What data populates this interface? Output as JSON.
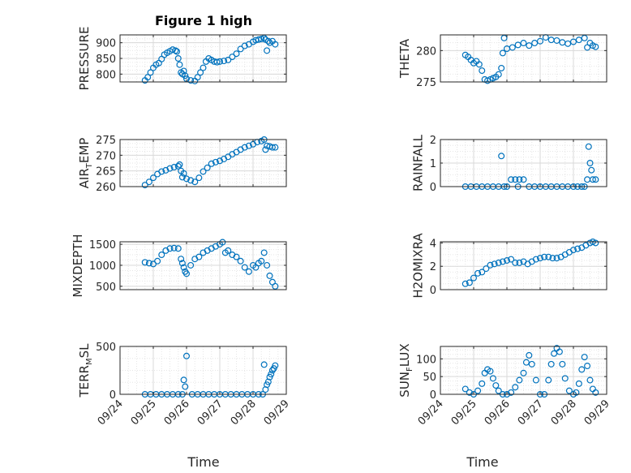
{
  "title": "Figure 1 high",
  "xlabel": "Time",
  "x_ticks": [
    "09/24",
    "09/25",
    "09/26",
    "09/27",
    "09/28",
    "09/29"
  ],
  "x_range": [
    "09/24",
    "09/29"
  ],
  "marker_color": "#0072BD",
  "chart_data": [
    {
      "type": "scatter",
      "ylabel": "PRESSURE",
      "ylim": [
        775,
        925
      ],
      "y_ticks": [
        "800",
        "850",
        "900"
      ],
      "grid": true,
      "x": [
        "09/24 18:00",
        "09/24 20:00",
        "09/24 22:00",
        "09/25 00:00",
        "09/25 02:00",
        "09/25 04:00",
        "09/25 06:00",
        "09/25 08:00",
        "09/25 10:00",
        "09/25 12:00",
        "09/25 14:00",
        "09/25 16:00",
        "09/25 17:00",
        "09/25 18:00",
        "09/25 19:00",
        "09/25 20:00",
        "09/25 21:00",
        "09/25 22:00",
        "09/25 23:00",
        "09/26 00:00",
        "09/26 03:00",
        "09/26 06:00",
        "09/26 08:00",
        "09/26 10:00",
        "09/26 12:00",
        "09/26 14:00",
        "09/26 16:00",
        "09/26 18:00",
        "09/26 20:00",
        "09/26 22:00",
        "09/27 00:00",
        "09/27 03:00",
        "09/27 06:00",
        "09/27 09:00",
        "09/27 12:00",
        "09/27 15:00",
        "09/27 18:00",
        "09/27 21:00",
        "09/28 00:00",
        "09/28 02:00",
        "09/28 04:00",
        "09/28 06:00",
        "09/28 08:00",
        "09/28 09:00",
        "09/28 10:00",
        "09/28 11:00",
        "09/28 12:00",
        "09/28 14:00",
        "09/28 16:00"
      ],
      "y": [
        780,
        790,
        805,
        820,
        830,
        835,
        848,
        862,
        868,
        873,
        878,
        875,
        872,
        850,
        830,
        805,
        800,
        810,
        795,
        785,
        780,
        778,
        790,
        805,
        820,
        840,
        850,
        845,
        840,
        838,
        840,
        842,
        845,
        855,
        865,
        880,
        890,
        895,
        903,
        908,
        910,
        912,
        915,
        910,
        875,
        905,
        900,
        905,
        895
      ]
    },
    {
      "type": "scatter",
      "ylabel": "THETA",
      "ylim": [
        275,
        282.5
      ],
      "y_ticks": [
        "275",
        "280"
      ],
      "grid": true,
      "x": [
        "09/24 18:00",
        "09/24 20:00",
        "09/24 22:00",
        "09/25 00:00",
        "09/25 02:00",
        "09/25 04:00",
        "09/25 06:00",
        "09/25 08:00",
        "09/25 10:00",
        "09/25 12:00",
        "09/25 14:00",
        "09/25 16:00",
        "09/25 18:00",
        "09/25 20:00",
        "09/25 21:00",
        "09/25 22:00",
        "09/26 00:00",
        "09/26 04:00",
        "09/26 08:00",
        "09/26 12:00",
        "09/26 16:00",
        "09/26 20:00",
        "09/27 00:00",
        "09/27 04:00",
        "09/27 08:00",
        "09/27 12:00",
        "09/27 16:00",
        "09/27 20:00",
        "09/28 00:00",
        "09/28 04:00",
        "09/28 08:00",
        "09/28 10:00",
        "09/28 12:00",
        "09/28 14:00",
        "09/28 16:00"
      ],
      "y": [
        279.3,
        279.0,
        278.5,
        278.0,
        278.3,
        277.8,
        276.8,
        275.4,
        275.2,
        275.4,
        275.6,
        275.8,
        276.2,
        277.2,
        279.6,
        282.0,
        280.3,
        280.5,
        280.9,
        281.2,
        280.8,
        281.2,
        281.5,
        282.1,
        281.7,
        281.6,
        281.3,
        281.1,
        281.4,
        281.7,
        282.0,
        280.5,
        281.2,
        280.8,
        280.6
      ]
    },
    {
      "type": "scatter",
      "ylabel": "AIR_TEMP",
      "ylabel_parts": [
        "AIR",
        "T",
        "EMP"
      ],
      "ylim": [
        260,
        275
      ],
      "y_ticks": [
        "260",
        "265",
        "270",
        "275"
      ],
      "grid": true,
      "x": [
        "09/24 18:00",
        "09/24 21:00",
        "09/25 00:00",
        "09/25 03:00",
        "09/25 06:00",
        "09/25 09:00",
        "09/25 12:00",
        "09/25 15:00",
        "09/25 18:00",
        "09/25 19:00",
        "09/25 20:00",
        "09/25 21:00",
        "09/25 22:00",
        "09/26 00:00",
        "09/26 03:00",
        "09/26 06:00",
        "09/26 09:00",
        "09/26 12:00",
        "09/26 15:00",
        "09/26 18:00",
        "09/26 21:00",
        "09/27 00:00",
        "09/27 03:00",
        "09/27 06:00",
        "09/27 09:00",
        "09/27 12:00",
        "09/27 15:00",
        "09/27 18:00",
        "09/27 21:00",
        "09/28 00:00",
        "09/28 03:00",
        "09/28 06:00",
        "09/28 08:00",
        "09/28 09:00",
        "09/28 10:00",
        "09/28 12:00",
        "09/28 14:00",
        "09/28 16:00"
      ],
      "y": [
        260.5,
        261.5,
        262.8,
        264.0,
        264.8,
        265.2,
        265.8,
        266.2,
        266.5,
        267.0,
        265.0,
        263.0,
        264.2,
        262.5,
        262.0,
        261.5,
        262.8,
        264.8,
        266.0,
        267.3,
        267.8,
        268.2,
        268.8,
        269.5,
        270.3,
        271.0,
        271.8,
        272.5,
        273.0,
        273.5,
        274.2,
        274.5,
        275.0,
        271.8,
        273.0,
        272.8,
        272.5,
        272.5
      ]
    },
    {
      "type": "scatter",
      "ylabel": "RAINFALL",
      "ylim": [
        0,
        2
      ],
      "y_ticks": [
        "0",
        "1",
        "2"
      ],
      "grid": true,
      "x": [
        "09/24 18:00",
        "09/24 22:00",
        "09/25 02:00",
        "09/25 06:00",
        "09/25 10:00",
        "09/25 14:00",
        "09/25 18:00",
        "09/25 20:00",
        "09/25 22:00",
        "09/26 00:00",
        "09/26 03:00",
        "09/26 06:00",
        "09/26 08:00",
        "09/26 09:00",
        "09/26 12:00",
        "09/26 16:00",
        "09/26 20:00",
        "09/27 00:00",
        "09/27 04:00",
        "09/27 08:00",
        "09/27 12:00",
        "09/27 16:00",
        "09/27 20:00",
        "09/28 00:00",
        "09/28 03:00",
        "09/28 06:00",
        "09/28 08:00",
        "09/28 10:00",
        "09/28 11:00",
        "09/28 12:00",
        "09/28 13:00",
        "09/28 14:00",
        "09/28 16:00"
      ],
      "y": [
        0,
        0,
        0,
        0,
        0,
        0,
        0,
        1.3,
        0,
        0,
        0.3,
        0.3,
        0,
        0.3,
        0.3,
        0,
        0,
        0,
        0,
        0,
        0,
        0,
        0,
        0,
        0,
        0,
        0,
        0.3,
        1.7,
        1.0,
        0.7,
        0.3,
        0.3
      ]
    },
    {
      "type": "scatter",
      "ylabel": "MIXDEPTH",
      "ylim": [
        420,
        1560
      ],
      "y_ticks": [
        "500",
        "1000",
        "1500"
      ],
      "grid": true,
      "x": [
        "09/24 18:00",
        "09/24 21:00",
        "09/25 00:00",
        "09/25 03:00",
        "09/25 06:00",
        "09/25 09:00",
        "09/25 12:00",
        "09/25 15:00",
        "09/25 18:00",
        "09/25 20:00",
        "09/25 21:00",
        "09/25 22:00",
        "09/25 23:00",
        "09/26 00:00",
        "09/26 03:00",
        "09/26 06:00",
        "09/26 09:00",
        "09/26 12:00",
        "09/26 15:00",
        "09/26 18:00",
        "09/26 21:00",
        "09/27 00:00",
        "09/27 02:00",
        "09/27 04:00",
        "09/27 06:00",
        "09/27 09:00",
        "09/27 12:00",
        "09/27 15:00",
        "09/27 18:00",
        "09/27 21:00",
        "09/28 00:00",
        "09/28 02:00",
        "09/28 04:00",
        "09/28 06:00",
        "09/28 08:00",
        "09/28 10:00",
        "09/28 12:00",
        "09/28 14:00",
        "09/28 16:00"
      ],
      "y": [
        1070,
        1050,
        1030,
        1100,
        1250,
        1350,
        1400,
        1410,
        1400,
        1150,
        1050,
        950,
        850,
        800,
        1000,
        1150,
        1200,
        1300,
        1350,
        1400,
        1450,
        1500,
        1550,
        1300,
        1350,
        1250,
        1200,
        1100,
        950,
        850,
        1000,
        950,
        1050,
        1100,
        1300,
        1000,
        750,
        600,
        500
      ]
    },
    {
      "type": "scatter",
      "ylabel": "H2OMIXRA",
      "ylim": [
        0,
        4.1
      ],
      "y_ticks": [
        "0",
        "2",
        "4"
      ],
      "grid": true,
      "x": [
        "09/24 18:00",
        "09/24 21:00",
        "09/25 00:00",
        "09/25 03:00",
        "09/25 06:00",
        "09/25 09:00",
        "09/25 12:00",
        "09/25 15:00",
        "09/25 18:00",
        "09/25 21:00",
        "09/26 00:00",
        "09/26 03:00",
        "09/26 06:00",
        "09/26 09:00",
        "09/26 12:00",
        "09/26 15:00",
        "09/26 18:00",
        "09/26 21:00",
        "09/27 00:00",
        "09/27 03:00",
        "09/27 06:00",
        "09/27 09:00",
        "09/27 12:00",
        "09/27 15:00",
        "09/27 18:00",
        "09/27 21:00",
        "09/28 00:00",
        "09/28 03:00",
        "09/28 06:00",
        "09/28 09:00",
        "09/28 12:00",
        "09/28 14:00",
        "09/28 16:00"
      ],
      "y": [
        0.5,
        0.6,
        1.0,
        1.4,
        1.5,
        1.8,
        2.1,
        2.2,
        2.3,
        2.4,
        2.5,
        2.6,
        2.3,
        2.3,
        2.4,
        2.2,
        2.4,
        2.6,
        2.7,
        2.8,
        2.8,
        2.7,
        2.7,
        2.8,
        3.0,
        3.2,
        3.4,
        3.5,
        3.6,
        3.8,
        4.0,
        4.1,
        4.0
      ]
    },
    {
      "type": "scatter",
      "ylabel": "TERR_MSL",
      "ylabel_parts": [
        "TERR",
        "M",
        "SL"
      ],
      "ylim": [
        0,
        500
      ],
      "y_ticks": [
        "0",
        "500"
      ],
      "grid": true,
      "x": [
        "09/24 18:00",
        "09/24 22:00",
        "09/25 02:00",
        "09/25 06:00",
        "09/25 10:00",
        "09/25 14:00",
        "09/25 18:00",
        "09/25 21:00",
        "09/25 22:00",
        "09/25 23:00",
        "09/26 00:00",
        "09/26 04:00",
        "09/26 08:00",
        "09/26 12:00",
        "09/26 16:00",
        "09/26 20:00",
        "09/27 00:00",
        "09/27 04:00",
        "09/27 08:00",
        "09/27 12:00",
        "09/27 16:00",
        "09/27 20:00",
        "09/28 00:00",
        "09/28 04:00",
        "09/28 07:00",
        "09/28 08:00",
        "09/28 09:00",
        "09/28 10:00",
        "09/28 11:00",
        "09/28 12:00",
        "09/28 13:00",
        "09/28 14:00",
        "09/28 15:00",
        "09/28 16:00"
      ],
      "y": [
        0,
        0,
        0,
        0,
        0,
        0,
        0,
        0,
        150,
        80,
        400,
        0,
        0,
        0,
        0,
        0,
        0,
        0,
        0,
        0,
        0,
        0,
        0,
        0,
        0,
        310,
        50,
        100,
        130,
        180,
        210,
        250,
        270,
        300
      ]
    },
    {
      "type": "scatter",
      "ylabel": "SUN_FLUX",
      "ylabel_parts": [
        "SUN",
        "F",
        "LUX"
      ],
      "ylim": [
        0,
        135
      ],
      "y_ticks": [
        "0",
        "50",
        "100"
      ],
      "grid": true,
      "x": [
        "09/24 18:00",
        "09/24 21:00",
        "09/25 00:00",
        "09/25 03:00",
        "09/25 06:00",
        "09/25 08:00",
        "09/25 10:00",
        "09/25 12:00",
        "09/25 14:00",
        "09/25 16:00",
        "09/25 18:00",
        "09/25 21:00",
        "09/26 00:00",
        "09/26 03:00",
        "09/26 06:00",
        "09/26 09:00",
        "09/26 12:00",
        "09/26 14:00",
        "09/26 16:00",
        "09/26 18:00",
        "09/26 21:00",
        "09/27 00:00",
        "09/27 03:00",
        "09/27 06:00",
        "09/27 08:00",
        "09/27 10:00",
        "09/27 12:00",
        "09/27 14:00",
        "09/27 16:00",
        "09/27 18:00",
        "09/27 21:00",
        "09/28 00:00",
        "09/28 02:00",
        "09/28 04:00",
        "09/28 06:00",
        "09/28 08:00",
        "09/28 10:00",
        "09/28 12:00",
        "09/28 14:00",
        "09/28 16:00"
      ],
      "y": [
        15,
        5,
        0,
        10,
        30,
        60,
        70,
        65,
        45,
        25,
        10,
        0,
        0,
        5,
        20,
        40,
        60,
        90,
        110,
        85,
        40,
        0,
        0,
        40,
        85,
        115,
        130,
        120,
        85,
        45,
        10,
        0,
        5,
        30,
        70,
        105,
        80,
        40,
        15,
        5
      ]
    }
  ]
}
